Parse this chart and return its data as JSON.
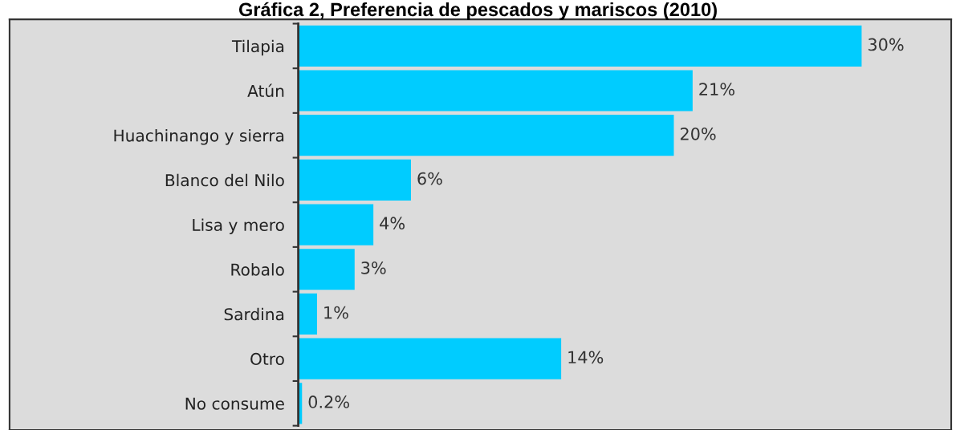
{
  "chart_data": {
    "type": "bar",
    "orientation": "horizontal",
    "title": "Gráfica 2, Preferencia de pescados y mariscos (2010)",
    "categories": [
      "Tilapia",
      "Atún",
      "Huachinango y sierra",
      "Blanco del Nilo",
      "Lisa y mero",
      "Robalo",
      "Sardina",
      "Otro",
      "No consume"
    ],
    "values": [
      30,
      21,
      20,
      6,
      4,
      3,
      1,
      14,
      0.2
    ],
    "value_labels": [
      "30%",
      "21%",
      "20%",
      "6%",
      "4%",
      "3%",
      "1%",
      "14%",
      "0.2%"
    ],
    "color": "#00ccff",
    "grid": false,
    "legend": false,
    "tick_labels": "y"
  }
}
